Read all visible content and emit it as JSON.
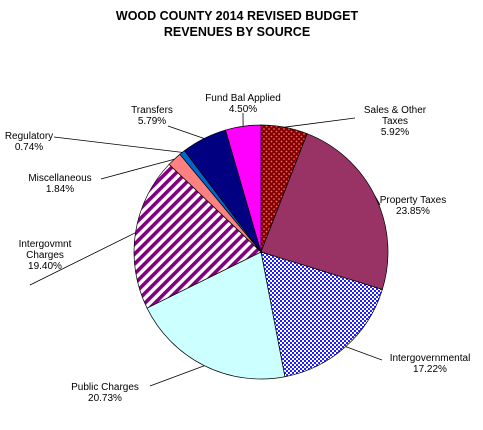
{
  "chart_data": {
    "type": "pie",
    "title": "WOOD COUNTY 2014 REVISED BUDGET",
    "subtitle": "REVENUES BY SOURCE",
    "slices": [
      {
        "label": "Sales & Other Taxes",
        "lines": [
          "Sales & Other",
          "Taxes"
        ],
        "value": 5.92,
        "value_label": "5.92%",
        "color": "#800000",
        "pattern": "dots-red"
      },
      {
        "label": "Property Taxes",
        "lines": [
          "Property Taxes"
        ],
        "value": 23.85,
        "value_label": "23.85%",
        "color": "#993366",
        "pattern": "solid"
      },
      {
        "label": "Intergovernmental",
        "lines": [
          "Intergovernmental"
        ],
        "value": 17.22,
        "value_label": "17.22%",
        "color": "#0000ff",
        "pattern": "checker-blue"
      },
      {
        "label": "Public Charges",
        "lines": [
          "Public Charges"
        ],
        "value": 20.73,
        "value_label": "20.73%",
        "color": "#ccffff",
        "pattern": "solid"
      },
      {
        "label": "Intergovmnt Charges",
        "lines": [
          "Intergovmnt",
          "Charges"
        ],
        "value": 19.4,
        "value_label": "19.40%",
        "color": "#800080",
        "pattern": "stripes-purple"
      },
      {
        "label": "Miscellaneous",
        "lines": [
          "Miscellaneous"
        ],
        "value": 1.84,
        "value_label": "1.84%",
        "color": "#ff8080",
        "pattern": "solid"
      },
      {
        "label": "Regulatory",
        "lines": [
          "Regulatory"
        ],
        "value": 0.74,
        "value_label": "0.74%",
        "color": "#0066cc",
        "pattern": "solid"
      },
      {
        "label": "Transfers",
        "lines": [
          "Transfers"
        ],
        "value": 5.79,
        "value_label": "5.79%",
        "color": "#000080",
        "pattern": "solid"
      },
      {
        "label": "Fund Bal Applied",
        "lines": [
          "Fund Bal Applied"
        ],
        "value": 4.5,
        "value_label": "4.50%",
        "color": "#ff00ff",
        "pattern": "solid"
      }
    ]
  }
}
